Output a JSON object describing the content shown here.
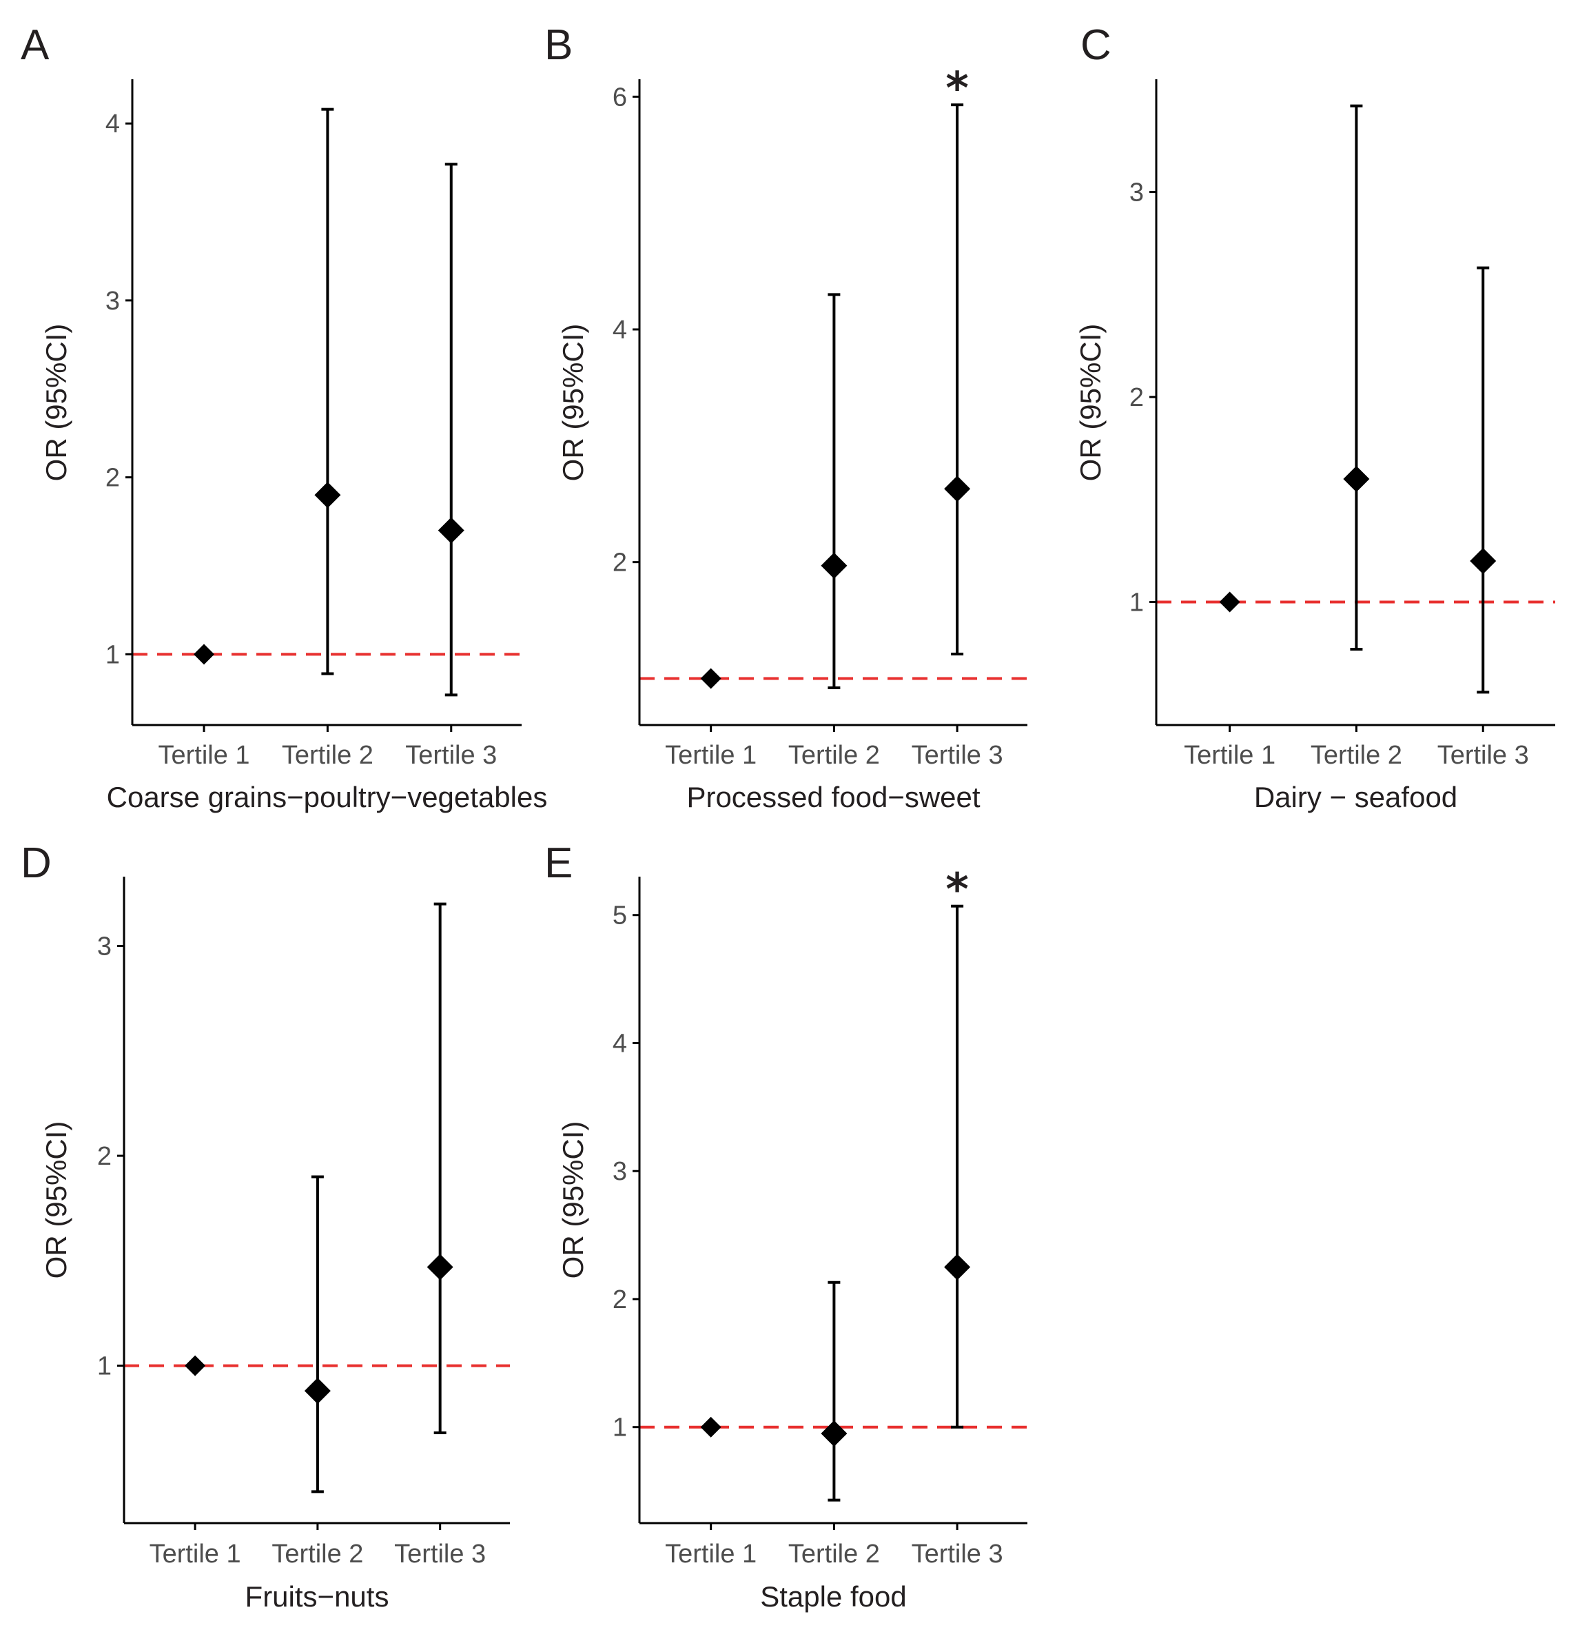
{
  "chart_data": [
    {
      "panel": "A",
      "type": "scatter",
      "xlabel": "Coarse grains−poultry−vegetables",
      "ylabel": "OR (95%CI)",
      "categories": [
        "Tertile 1",
        "Tertile 2",
        "Tertile 3"
      ],
      "or": [
        1.0,
        1.9,
        1.7
      ],
      "lower": [
        null,
        0.89,
        0.77
      ],
      "upper": [
        null,
        4.08,
        3.77
      ],
      "significant": [
        false,
        false,
        false
      ],
      "yticks": [
        "1",
        "2",
        "3",
        "4"
      ],
      "ylim": [
        0.6,
        4.25
      ],
      "reference_line": 1
    },
    {
      "panel": "B",
      "type": "scatter",
      "xlabel": "Processed food−sweet",
      "ylabel": "OR (95%CI)",
      "categories": [
        "Tertile 1",
        "Tertile 2",
        "Tertile 3"
      ],
      "or": [
        1.0,
        1.97,
        2.63
      ],
      "lower": [
        null,
        0.92,
        1.21
      ],
      "upper": [
        null,
        4.3,
        5.93
      ],
      "significant": [
        false,
        false,
        true
      ],
      "significance_marker": "*",
      "yticks": [
        "2",
        "4",
        "6"
      ],
      "ylim": [
        0.6,
        6.15
      ],
      "reference_line": 1
    },
    {
      "panel": "C",
      "type": "scatter",
      "xlabel": "Dairy − seafood",
      "ylabel": "OR (95%CI)",
      "categories": [
        "Tertile 1",
        "Tertile 2",
        "Tertile 3"
      ],
      "or": [
        1.0,
        1.6,
        1.2
      ],
      "lower": [
        null,
        0.77,
        0.56
      ],
      "upper": [
        null,
        3.42,
        2.63
      ],
      "significant": [
        false,
        false,
        false
      ],
      "yticks": [
        "1",
        "2",
        "3"
      ],
      "ylim": [
        0.4,
        3.55
      ],
      "reference_line": 1
    },
    {
      "panel": "D",
      "type": "scatter",
      "xlabel": "Fruits−nuts",
      "ylabel": "OR (95%CI)",
      "categories": [
        "Tertile 1",
        "Tertile 2",
        "Tertile 3"
      ],
      "or": [
        1.0,
        0.88,
        1.47
      ],
      "lower": [
        null,
        0.4,
        0.68
      ],
      "upper": [
        null,
        1.9,
        3.2
      ],
      "significant": [
        false,
        false,
        false
      ],
      "yticks": [
        "1",
        "2",
        "3"
      ],
      "ylim": [
        0.25,
        3.33
      ],
      "reference_line": 1
    },
    {
      "panel": "E",
      "type": "scatter",
      "xlabel": "Staple food",
      "ylabel": "OR (95%CI)",
      "categories": [
        "Tertile 1",
        "Tertile 2",
        "Tertile 3"
      ],
      "or": [
        1.0,
        0.95,
        2.25
      ],
      "lower": [
        null,
        0.43,
        1.0
      ],
      "upper": [
        null,
        2.13,
        5.07
      ],
      "significant": [
        false,
        false,
        true
      ],
      "significance_marker": "*",
      "yticks": [
        "1",
        "2",
        "3",
        "4",
        "5"
      ],
      "ylim": [
        0.25,
        5.3
      ],
      "reference_line": 1
    }
  ],
  "colors": {
    "marker": "#000000",
    "axis": "#000000",
    "reference_line": "#e8302f",
    "text": "#231f20",
    "tick_label": "#4d4d4d"
  }
}
